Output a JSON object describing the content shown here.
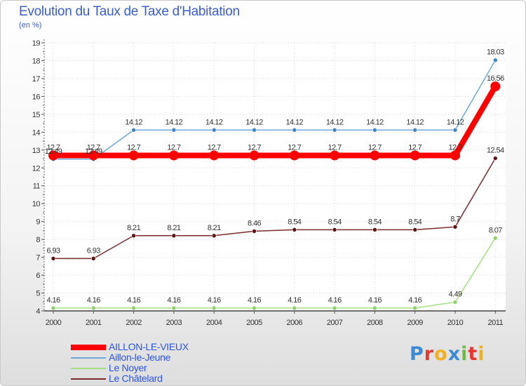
{
  "chart_data": {
    "type": "line",
    "title": "Evolution du Taux de Taxe d'Habitation",
    "subtitle": "(en %)",
    "xlabel": "",
    "ylabel": "",
    "x": [
      2000,
      2001,
      2002,
      2003,
      2004,
      2005,
      2006,
      2007,
      2008,
      2009,
      2010,
      2011
    ],
    "ylim": [
      4,
      19
    ],
    "yticks": [
      4,
      5,
      6,
      7,
      8,
      9,
      10,
      11,
      12,
      13,
      14,
      15,
      16,
      17,
      18,
      19
    ],
    "grid": true,
    "legend_position": "bottom-left",
    "series": [
      {
        "name": "AILLON-LE-VIEUX",
        "color": "#ff0000",
        "style": "thick",
        "values": [
          12.7,
          12.7,
          12.7,
          12.7,
          12.7,
          12.7,
          12.7,
          12.7,
          12.7,
          12.7,
          12.7,
          16.56
        ],
        "labels": [
          "12.7",
          "12.7",
          "12.7",
          "12.7",
          "12.7",
          "12.7",
          "12.7",
          "12.7",
          "12.7",
          "12.7",
          "12.7",
          "16.56"
        ]
      },
      {
        "name": "Aillon-le-Jeune",
        "color": "#6fa8dc",
        "marker": "#3d85c6",
        "style": "thin",
        "values": [
          12.49,
          12.49,
          14.12,
          14.12,
          14.12,
          14.12,
          14.12,
          14.12,
          14.12,
          14.12,
          14.12,
          18.03
        ],
        "labels": [
          "12.49",
          "12.49",
          "14.12",
          "14.12",
          "14.12",
          "14.12",
          "14.12",
          "14.12",
          "14.12",
          "14.12",
          "14.12",
          "18.03"
        ]
      },
      {
        "name": "Le Noyer",
        "color": "#a3e080",
        "marker": "#8fd16a",
        "style": "thin",
        "values": [
          4.16,
          4.16,
          4.16,
          4.16,
          4.16,
          4.16,
          4.16,
          4.16,
          4.16,
          4.16,
          4.49,
          8.07
        ],
        "labels": [
          "4.16",
          "4.16",
          "4.16",
          "4.16",
          "4.16",
          "4.16",
          "4.16",
          "4.16",
          "4.16",
          "4.16",
          "4.49",
          "8.07"
        ]
      },
      {
        "name": "Le Châtelard",
        "color": "#7a2a2a",
        "marker": "#5c1515",
        "style": "thin",
        "values": [
          6.93,
          6.93,
          8.21,
          8.21,
          8.21,
          8.46,
          8.54,
          8.54,
          8.54,
          8.54,
          8.7,
          12.54
        ],
        "labels": [
          "6.93",
          "6.93",
          "8.21",
          "8.21",
          "8.21",
          "8.46",
          "8.54",
          "8.54",
          "8.54",
          "8.54",
          "8.7",
          "12.54"
        ]
      }
    ]
  },
  "logo": {
    "letters": [
      "P",
      "r",
      "o",
      "x",
      "i",
      "t",
      "i"
    ],
    "colors": [
      "#3d8bd6",
      "#e8372f",
      "#f2b01e",
      "#3d8bd6",
      "#6abf3c",
      "#e8372f",
      "#f2b01e"
    ]
  }
}
